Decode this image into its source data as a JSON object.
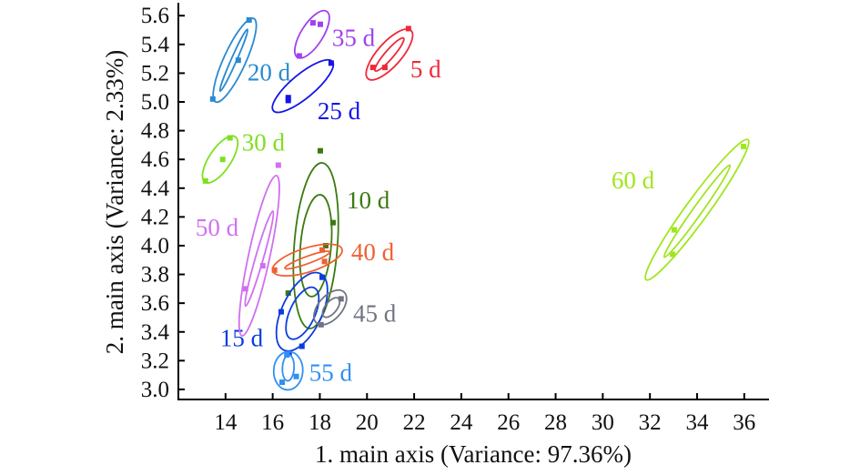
{
  "chart_data": {
    "type": "scatter",
    "title": "",
    "xlabel": "1. main axis (Variance: 97.36%)",
    "ylabel": "2. main axis (Variance: 2.33%)",
    "xlim": [
      12.0,
      37.05
    ],
    "ylim": [
      2.93,
      5.69
    ],
    "xticks": [
      "14",
      "16",
      "18",
      "20",
      "22",
      "24",
      "26",
      "28",
      "30",
      "32",
      "34",
      "36"
    ],
    "yticks": [
      "3.0",
      "3.2",
      "3.4",
      "3.6",
      "3.8",
      "4.0",
      "4.2",
      "4.4",
      "4.6",
      "4.8",
      "5.0",
      "5.2",
      "5.4",
      "5.6"
    ],
    "grid": false,
    "series": [
      {
        "name": "5 d",
        "color": "#f02838",
        "label_at": [
          21.84,
          5.17
        ],
        "points": [
          [
            21.76,
            5.51
          ],
          [
            20.25,
            5.24
          ],
          [
            20.76,
            5.24
          ]
        ],
        "ellipses": [
          {
            "center": [
              20.95,
              5.33
            ],
            "half_major": [
              0.91,
              0.168
            ],
            "minor_ratio": 0.37
          },
          {
            "center": [
              20.95,
              5.33
            ],
            "half_major": [
              0.6,
              0.114
            ],
            "minor_ratio": 0.2
          }
        ]
      },
      {
        "name": "10 d",
        "color": "#3a7a10",
        "label_at": [
          19.14,
          4.26
        ],
        "points": [
          [
            18.02,
            4.66
          ],
          [
            18.56,
            4.16
          ],
          [
            18.25,
            4.0
          ],
          [
            16.66,
            3.67
          ]
        ],
        "ellipses": [
          {
            "center": [
              17.83,
              4.0
            ],
            "half_major": [
              0.27,
              0.576
            ],
            "minor_ratio": 0.26
          },
          {
            "center": [
              17.83,
              4.0
            ],
            "half_major": [
              0.19,
              0.354
            ],
            "minor_ratio": 0.3
          }
        ]
      },
      {
        "name": "15 d",
        "color": "#0a3ce0",
        "label_at": [
          13.77,
          3.3
        ],
        "points": [
          [
            18.1,
            3.78
          ],
          [
            16.36,
            3.54
          ],
          [
            17.24,
            3.3
          ],
          [
            16.7,
            3.25
          ]
        ],
        "ellipses": [
          {
            "center": [
              17.24,
              3.54
            ],
            "half_major": [
              0.77,
              0.266
            ],
            "minor_ratio": 0.47
          },
          {
            "center": [
              17.26,
              3.53
            ],
            "half_major": [
              0.5,
              0.177
            ],
            "minor_ratio": 0.45
          }
        ]
      },
      {
        "name": "20 d",
        "color": "#2a8ad0",
        "label_at": [
          14.93,
          5.15
        ],
        "points": [
          [
            15.0,
            5.57
          ],
          [
            14.54,
            5.29
          ],
          [
            13.46,
            5.02
          ]
        ],
        "ellipses": [
          {
            "center": [
              14.39,
              5.29
            ],
            "half_major": [
              0.81,
              0.29
            ],
            "minor_ratio": 0.24
          },
          {
            "center": [
              14.35,
              5.29
            ],
            "half_major": [
              0.58,
              0.215
            ],
            "minor_ratio": 0.08
          }
        ]
      },
      {
        "name": "25 d",
        "color": "#1414e8",
        "label_at": [
          17.9,
          4.88
        ],
        "points": [
          [
            18.48,
            5.27
          ],
          [
            16.66,
            5.01
          ],
          [
            16.66,
            5.03
          ]
        ],
        "ellipses": [
          {
            "center": [
              17.28,
              5.11
            ],
            "half_major": [
              1.25,
              0.171
            ],
            "minor_ratio": 0.31
          }
        ]
      },
      {
        "name": "30 d",
        "color": "#7ee020",
        "label_at": [
          14.69,
          4.66
        ],
        "points": [
          [
            14.19,
            4.75
          ],
          [
            13.88,
            4.6
          ],
          [
            13.15,
            4.45
          ]
        ],
        "ellipses": [
          {
            "center": [
              13.77,
              4.6
            ],
            "half_major": [
              0.64,
              0.158
            ],
            "minor_ratio": 0.4
          }
        ]
      },
      {
        "name": "35 d",
        "color": "#a040f0",
        "label_at": [
          18.52,
          5.39
        ],
        "points": [
          [
            17.71,
            5.55
          ],
          [
            18.02,
            5.54
          ],
          [
            17.13,
            5.32
          ]
        ],
        "ellipses": [
          {
            "center": [
              17.67,
              5.47
            ],
            "half_major": [
              0.62,
              0.16
            ],
            "minor_ratio": 0.4
          }
        ]
      },
      {
        "name": "40 d",
        "color": "#f06030",
        "label_at": [
          19.33,
          3.9
        ],
        "points": [
          [
            18.1,
            3.97
          ],
          [
            16.08,
            3.83
          ],
          [
            18.2,
            3.89
          ]
        ],
        "ellipses": [
          {
            "center": [
              17.47,
              3.9
            ],
            "half_major": [
              1.47,
              0.076
            ],
            "minor_ratio": 0.33
          },
          {
            "center": [
              17.47,
              3.9
            ],
            "half_major": [
              0.95,
              0.057
            ],
            "minor_ratio": 0.15
          }
        ]
      },
      {
        "name": "45 d",
        "color": "#707482",
        "label_at": [
          19.41,
          3.47
        ],
        "points": [
          [
            18.9,
            3.63
          ],
          [
            18.05,
            3.45
          ]
        ],
        "ellipses": [
          {
            "center": [
              18.44,
              3.57
            ],
            "half_major": [
              0.58,
              0.108
            ],
            "minor_ratio": 0.57
          },
          {
            "center": [
              18.48,
              3.57
            ],
            "half_major": [
              0.31,
              0.063
            ],
            "minor_ratio": 0.5
          }
        ]
      },
      {
        "name": "50 d",
        "color": "#d070f0",
        "label_at": [
          12.73,
          4.07
        ],
        "points": [
          [
            16.24,
            4.56
          ],
          [
            15.58,
            3.86
          ],
          [
            14.85,
            3.7
          ]
        ],
        "ellipses": [
          {
            "center": [
              15.43,
              3.93
            ],
            "half_major": [
              0.73,
              0.557
            ],
            "minor_ratio": 0.13
          },
          {
            "center": [
              15.43,
              3.91
            ],
            "half_major": [
              0.58,
              0.33
            ],
            "minor_ratio": 0.08
          }
        ]
      },
      {
        "name": "55 d",
        "color": "#3090f0",
        "label_at": [
          17.55,
          3.06
        ],
        "points": [
          [
            16.4,
            3.05
          ],
          [
            17.0,
            3.09
          ],
          [
            16.6,
            3.24
          ]
        ],
        "ellipses": [
          {
            "center": [
              16.66,
              3.13
            ],
            "half_major": [
              0.04,
              0.133
            ],
            "minor_ratio": 0.76
          },
          {
            "center": [
              16.66,
              3.15
            ],
            "half_major": [
              0.03,
              0.09
            ],
            "minor_ratio": 0.45
          }
        ]
      },
      {
        "name": "60 d",
        "color": "#a0e61e",
        "label_at": [
          30.37,
          4.4
        ],
        "points": [
          [
            35.97,
            4.69
          ],
          [
            33.03,
            4.11
          ],
          [
            32.96,
            3.94
          ]
        ],
        "ellipses": [
          {
            "center": [
              34.0,
              4.25
            ],
            "half_major": [
              2.16,
              0.487
            ],
            "minor_ratio": 0.13
          },
          {
            "center": [
              34.0,
              4.24
            ],
            "half_major": [
              1.39,
              0.32
            ],
            "minor_ratio": 0.08
          }
        ]
      }
    ]
  }
}
